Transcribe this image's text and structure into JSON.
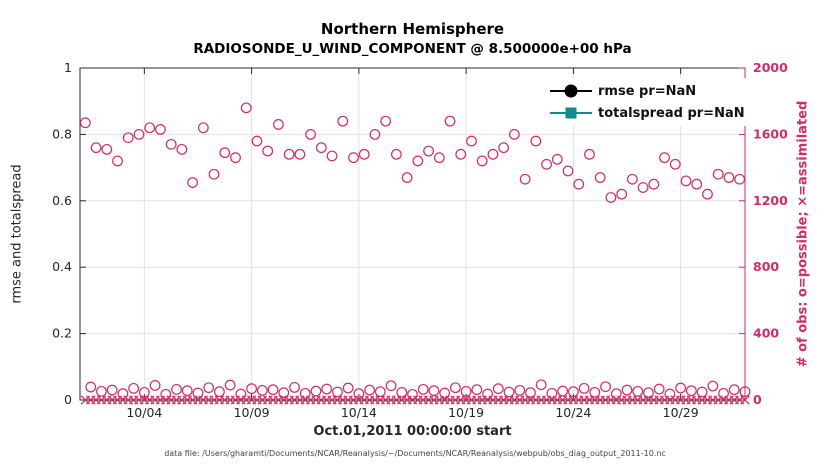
{
  "footer": "data file: /Users/gharamti/Documents/NCAR/Reanalysis/~/Documents/NCAR/Reanalysis/webpub/obs_diag_output_2011-10.nc",
  "legend": {
    "items": [
      {
        "label": "rmse pr=NaN",
        "color": "#000000",
        "marker": "filled-circle"
      },
      {
        "label": "totalspread pr=NaN",
        "color": "#118a8a",
        "marker": "filled-square"
      }
    ]
  },
  "chart_data": {
    "type": "scatter",
    "title": "Northern Hemisphere",
    "subtitle": "RADIOSONDE_U_WIND_COMPONENT @ 8.500000e+00 hPa",
    "xlabel": "Oct.01,2011 00:00:00 start",
    "ylabel_left": "rmse and totalspread",
    "ylabel_right": "# of obs: o=possible; ×=assimilated",
    "x_range_days": [
      0,
      31
    ],
    "x_ticks": [
      {
        "day": 3,
        "label": "10/04"
      },
      {
        "day": 8,
        "label": "10/09"
      },
      {
        "day": 13,
        "label": "10/14"
      },
      {
        "day": 18,
        "label": "10/19"
      },
      {
        "day": 23,
        "label": "10/24"
      },
      {
        "day": 28,
        "label": "10/29"
      }
    ],
    "ylim_left": [
      0,
      1
    ],
    "y_ticks_left": [
      "0",
      "0.2",
      "0.4",
      "0.6",
      "0.8",
      "1"
    ],
    "ylim_right": [
      0,
      2000
    ],
    "y_ticks_right": [
      "0",
      "400",
      "800",
      "1200",
      "1600",
      "2000"
    ],
    "grid": true,
    "legend_position": "top-right-inside",
    "colors": {
      "obs_pink": "#d62a66",
      "axis_dark": "#2b2b2b",
      "grid": "#e2e2e2",
      "teal": "#118a8a"
    },
    "series": [
      {
        "name": "# of obs possible",
        "legend_label": null,
        "marker": "o",
        "axis": "right",
        "color": "#d62a66",
        "x_start_day": 0.25,
        "x_step_days": 0.25,
        "sampling_note": "4x daily; values alternate high (00/12Z) and low (06/18Z) bands, interleaved high,low,high,low...",
        "values_high": [
          1670,
          1520,
          1510,
          1440,
          1580,
          1600,
          1640,
          1630,
          1540,
          1510,
          1310,
          1640,
          1360,
          1490,
          1460,
          1760,
          1560,
          1500,
          1660,
          1480,
          1480,
          1600,
          1520,
          1470,
          1680,
          1460,
          1480,
          1600,
          1680,
          1480,
          1340,
          1440,
          1500,
          1460,
          1680,
          1480,
          1560,
          1440,
          1480,
          1520,
          1600,
          1330,
          1560,
          1420,
          1450,
          1380,
          1300,
          1480,
          1340,
          1220,
          1240,
          1330,
          1280,
          1300,
          1460,
          1420,
          1320,
          1300,
          1240,
          1360,
          1340,
          1330
        ],
        "values_low": [
          78,
          52,
          60,
          38,
          70,
          46,
          88,
          34,
          64,
          56,
          42,
          74,
          50,
          90,
          36,
          68,
          58,
          62,
          44,
          76,
          40,
          54,
          66,
          48,
          72,
          38,
          60,
          50,
          86,
          46,
          34,
          64,
          56,
          42,
          74,
          52,
          62,
          36,
          68,
          48,
          58,
          44,
          92,
          40,
          54,
          50,
          70,
          46,
          80,
          38,
          60,
          52,
          44,
          66,
          36,
          72,
          56,
          48,
          84,
          40,
          62,
          50
        ]
      },
      {
        "name": "# of obs assimilated",
        "legend_label": null,
        "marker": "x",
        "axis": "right",
        "color": "#d62a66",
        "x_start_day": 0.25,
        "x_step_days": 0.25,
        "constant_value": 0,
        "count": 124
      },
      {
        "name": "rmse",
        "legend_label": "rmse pr=NaN",
        "marker": "filled-circle",
        "axis": "left",
        "color": "#000000",
        "values": "NaN (not plotted)"
      },
      {
        "name": "totalspread",
        "legend_label": "totalspread pr=NaN",
        "marker": "filled-square",
        "axis": "left",
        "color": "#118a8a",
        "values": "NaN (not plotted)"
      }
    ]
  }
}
